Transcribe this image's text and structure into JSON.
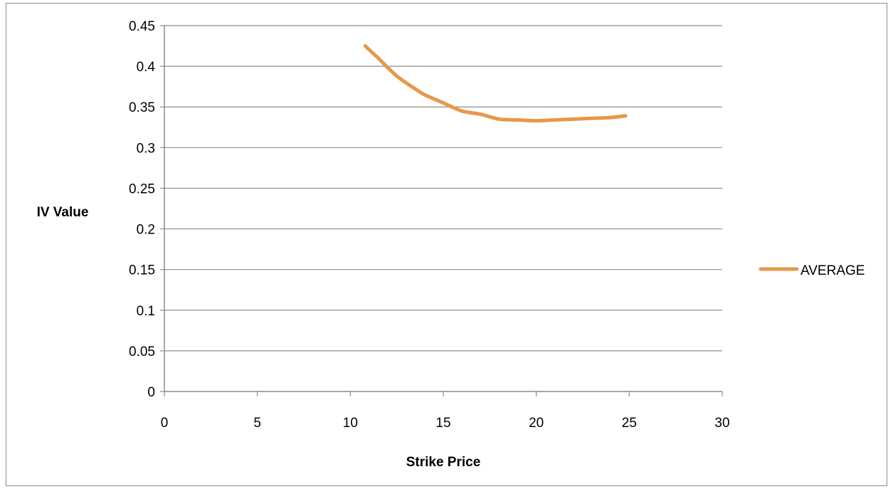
{
  "chart_data": {
    "type": "line",
    "title": "",
    "xlabel": "Strike Price",
    "ylabel": "IV Value",
    "xlim": [
      0,
      30
    ],
    "ylim": [
      0,
      0.45
    ],
    "x_ticks": [
      0,
      5,
      10,
      15,
      20,
      25,
      30
    ],
    "y_ticks": [
      0,
      0.05,
      0.1,
      0.15,
      0.2,
      0.25,
      0.3,
      0.35,
      0.4,
      0.45
    ],
    "x_tick_labels": [
      "0",
      "5",
      "10",
      "15",
      "20",
      "25",
      "30"
    ],
    "y_tick_labels": [
      "0",
      "0.05",
      "0.1",
      "0.15",
      "0.2",
      "0.25",
      "0.3",
      "0.35",
      "0.4",
      "0.45"
    ],
    "grid": "horizontal",
    "legend_position": "right",
    "series": [
      {
        "name": "AVERAGE",
        "color": "#e8974a",
        "x": [
          10.8,
          11.5,
          12.5,
          13.5,
          14.0,
          15.0,
          16.0,
          17.0,
          18.0,
          19.0,
          20.0,
          21.0,
          22.0,
          23.0,
          24.0,
          24.8
        ],
        "y": [
          0.425,
          0.41,
          0.388,
          0.372,
          0.365,
          0.355,
          0.345,
          0.341,
          0.335,
          0.334,
          0.333,
          0.334,
          0.335,
          0.336,
          0.337,
          0.339
        ]
      }
    ]
  }
}
